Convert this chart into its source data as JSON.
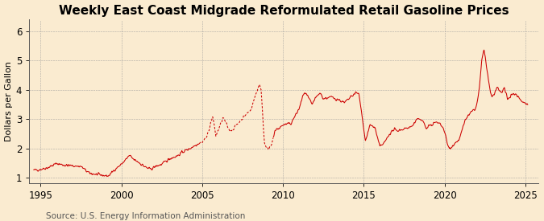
{
  "title": "Weekly East Coast Midgrade Reformulated Retail Gasoline Prices",
  "ylabel": "Dollars per Gallon",
  "source": "Source: U.S. Energy Information Administration",
  "background_color": "#faebd0",
  "line_color": "#cc0000",
  "xlim": [
    1994.3,
    2025.8
  ],
  "ylim": [
    0.8,
    6.4
  ],
  "yticks": [
    1,
    2,
    3,
    4,
    5,
    6
  ],
  "xticks": [
    1995,
    2000,
    2005,
    2010,
    2015,
    2020,
    2025
  ],
  "grid_color": "#999999",
  "title_fontsize": 11,
  "label_fontsize": 8,
  "tick_fontsize": 8.5,
  "source_fontsize": 7.5,
  "gap_start_year": 2004.8,
  "gap_end_year": 2009.4
}
